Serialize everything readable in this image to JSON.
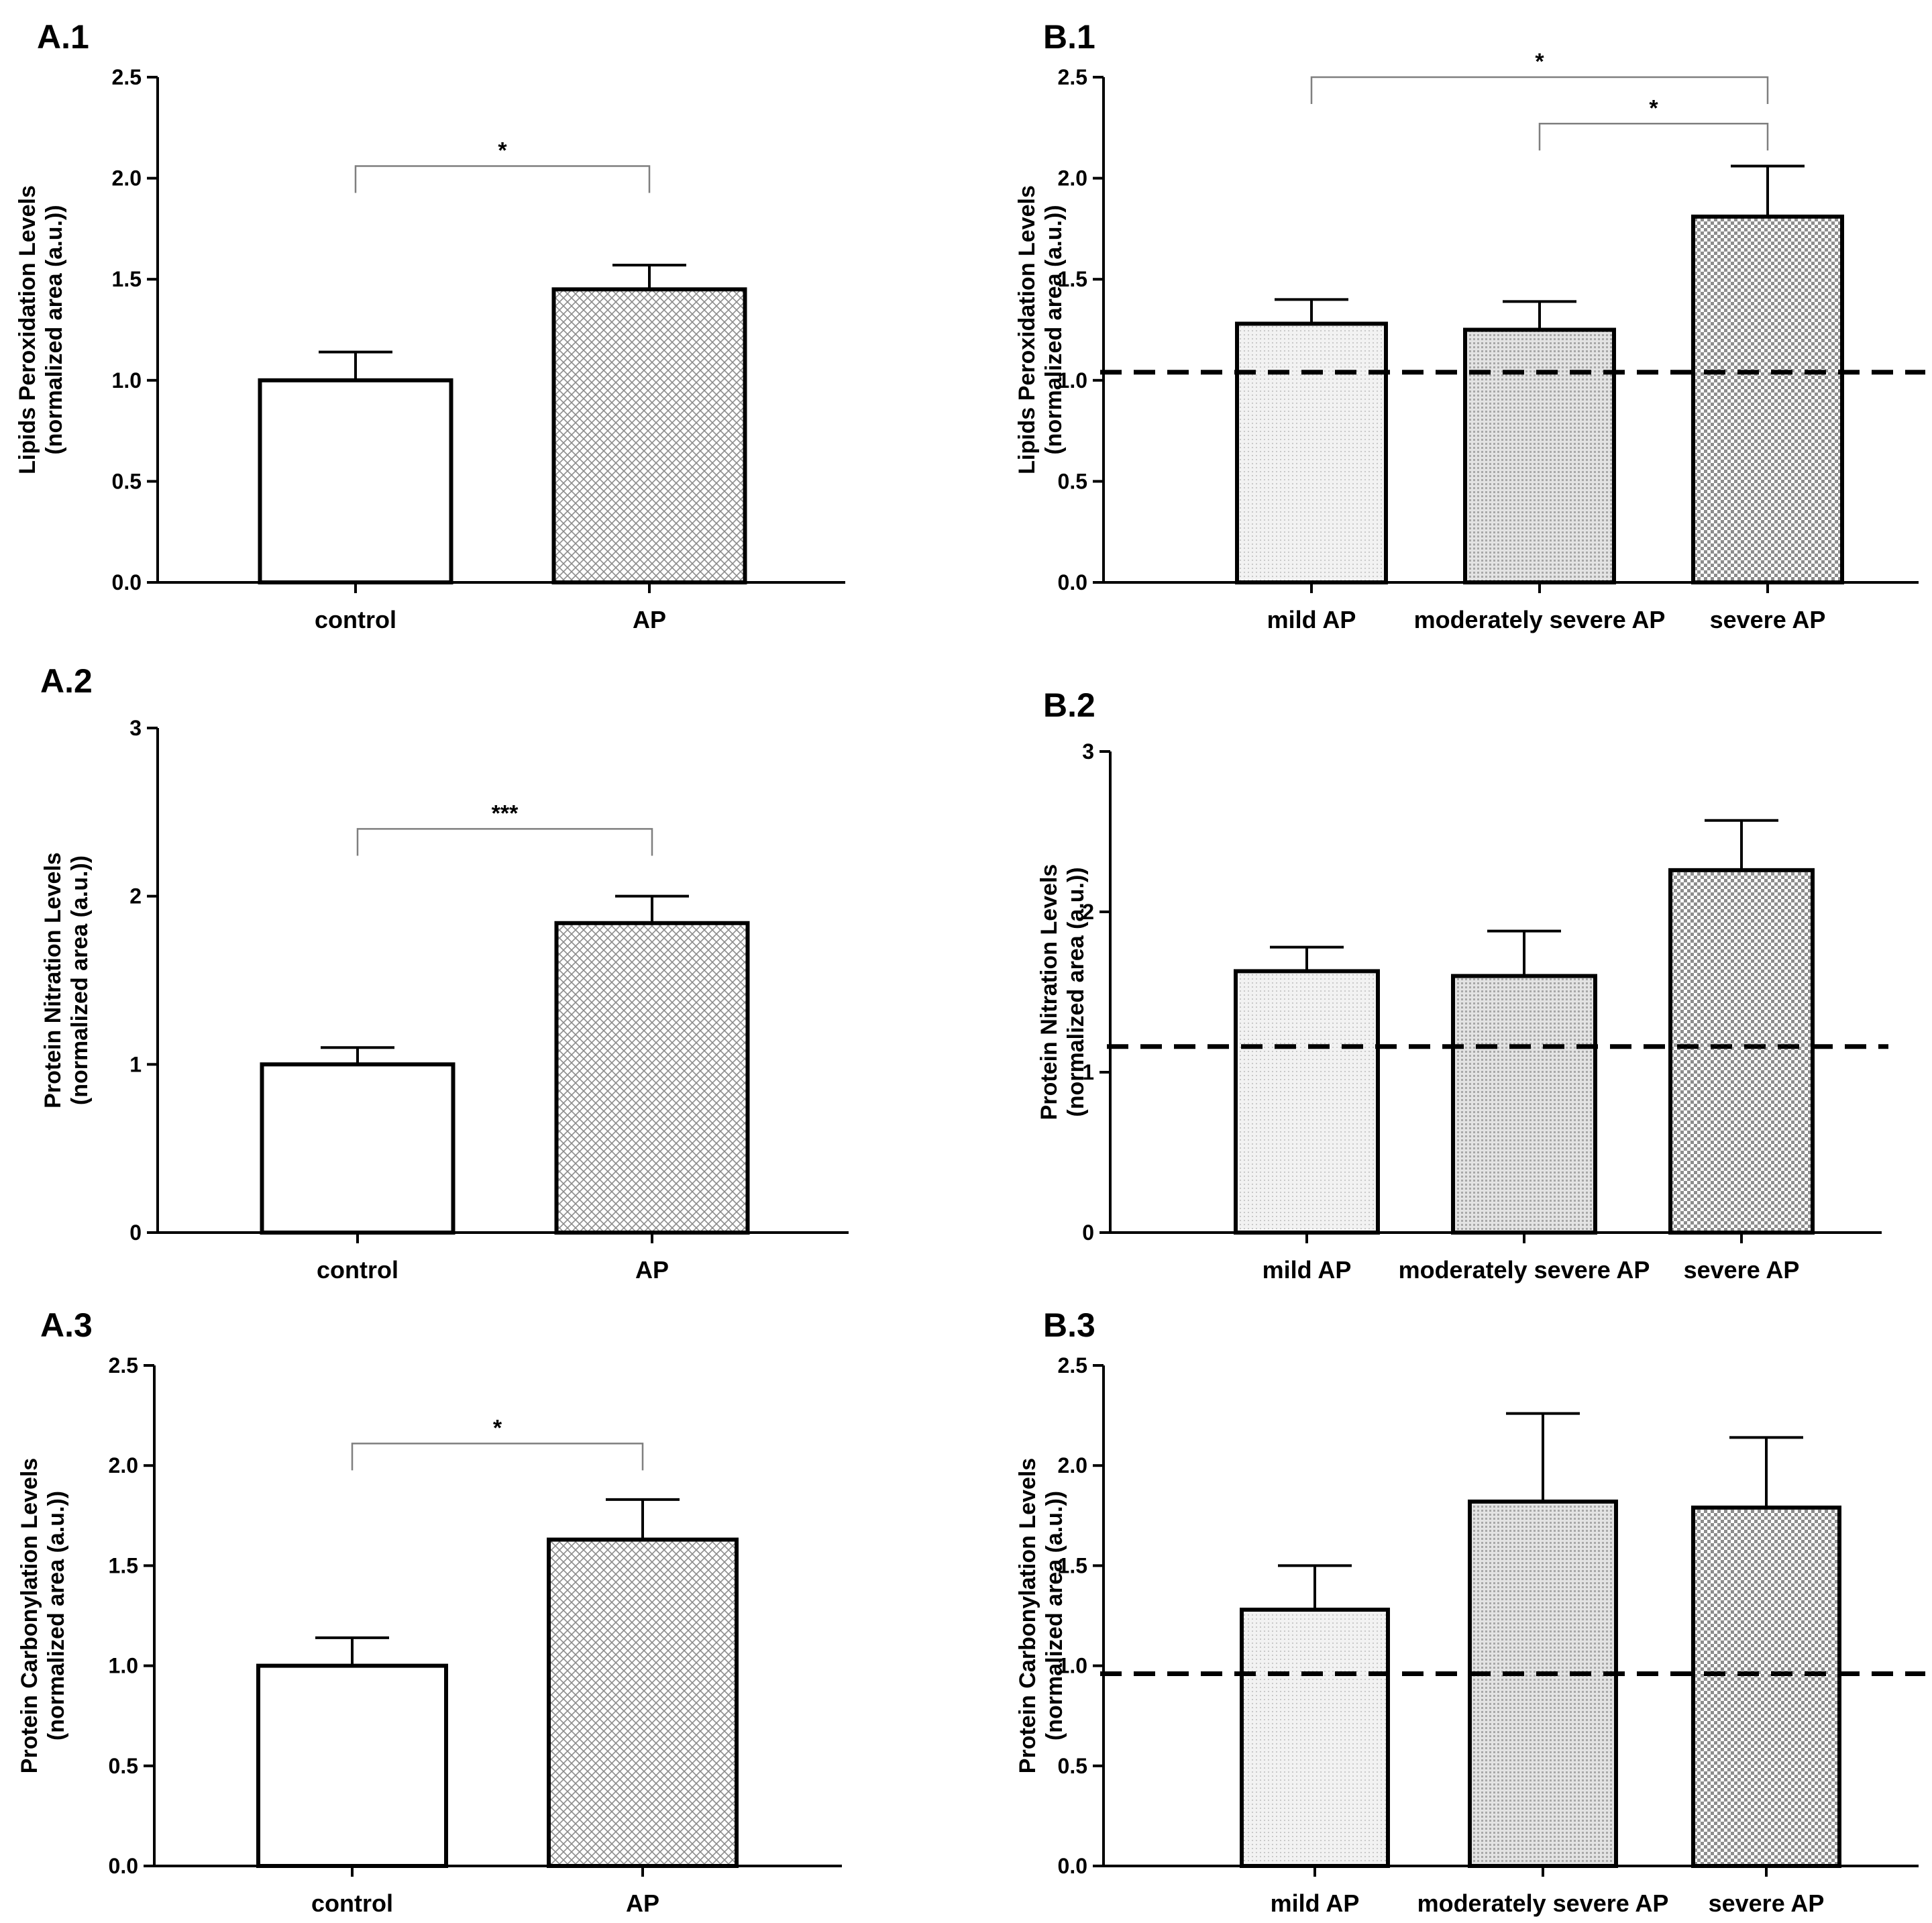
{
  "colors": {
    "ink": "#000000",
    "fill_light": "#f1f1f1",
    "fill_mid": "#d9d9d9",
    "fill_dark": "#bdbdbd",
    "bracket": "#7f7f7f"
  },
  "chart_data": [
    {
      "id": "A1",
      "panel_label": "A.1",
      "type": "bar",
      "title": "",
      "ylabel_line1": "Lipids Peroxidation Levels",
      "ylabel_line2": "(normalized area (a.u.))",
      "ylim": [
        0,
        2.5
      ],
      "ytick_labels": [
        "0.0",
        "0.5",
        "1.0",
        "1.5",
        "2.0",
        "2.5"
      ],
      "categories": [
        "control",
        "AP"
      ],
      "values": [
        1.0,
        1.45
      ],
      "errors": [
        0.14,
        0.12
      ],
      "patterns": [
        "white",
        "mesh"
      ],
      "significance": [
        {
          "from": 0,
          "to": 1,
          "label": "*",
          "level": 2.06
        }
      ]
    },
    {
      "id": "B1",
      "panel_label": "B.1",
      "type": "bar",
      "title": "",
      "ylabel_line1": "Lipids Peroxidation Levels",
      "ylabel_line2": "(normalized area (a.u.))",
      "ylim": [
        0,
        2.5
      ],
      "ytick_labels": [
        "0.0",
        "0.5",
        "1.0",
        "1.5",
        "2.0",
        "2.5"
      ],
      "categories": [
        "mild AP",
        "moderately severe AP",
        "severe AP"
      ],
      "values": [
        1.28,
        1.25,
        1.81
      ],
      "errors": [
        0.12,
        0.14,
        0.25
      ],
      "patterns": [
        "light",
        "mid",
        "dark"
      ],
      "reference_line": 1.04,
      "significance": [
        {
          "from": 0,
          "to": 2,
          "label": "*",
          "level": 2.5
        },
        {
          "from": 1,
          "to": 2,
          "label": "*",
          "level": 2.27
        }
      ]
    },
    {
      "id": "A2",
      "panel_label": "A.2",
      "type": "bar",
      "title": "",
      "ylabel_line1": "Protein Nitration Levels",
      "ylabel_line2": "(normalized area (a.u.))",
      "ylim": [
        0,
        3
      ],
      "ytick_labels": [
        "0",
        "1",
        "2",
        "3"
      ],
      "categories": [
        "control",
        "AP"
      ],
      "values": [
        1.0,
        1.84
      ],
      "errors": [
        0.1,
        0.16
      ],
      "patterns": [
        "white",
        "mesh"
      ],
      "significance": [
        {
          "from": 0,
          "to": 1,
          "label": "***",
          "level": 2.4
        }
      ]
    },
    {
      "id": "B2",
      "panel_label": "B.2",
      "type": "bar",
      "title": "",
      "ylabel_line1": "Protein Nitration Levels",
      "ylabel_line2": "(normalized area (a.u.))",
      "ylim": [
        0,
        3
      ],
      "ytick_labels": [
        "0",
        "1",
        "2",
        "3"
      ],
      "categories": [
        "mild AP",
        "moderately severe AP",
        "severe AP"
      ],
      "values": [
        1.63,
        1.6,
        2.26
      ],
      "errors": [
        0.15,
        0.28,
        0.31
      ],
      "patterns": [
        "light",
        "mid",
        "dark"
      ],
      "reference_line": 1.16,
      "significance": []
    },
    {
      "id": "A3",
      "panel_label": "A.3",
      "type": "bar",
      "title": "",
      "ylabel_line1": "Protein Carbonylation Levels",
      "ylabel_line2": "(normalized area (a.u.))",
      "ylim": [
        0,
        2.5
      ],
      "ytick_labels": [
        "0.0",
        "0.5",
        "1.0",
        "1.5",
        "2.0",
        "2.5"
      ],
      "categories": [
        "control",
        "AP"
      ],
      "values": [
        1.0,
        1.63
      ],
      "errors": [
        0.14,
        0.2
      ],
      "patterns": [
        "white",
        "mesh"
      ],
      "significance": [
        {
          "from": 0,
          "to": 1,
          "label": "*",
          "level": 2.11
        }
      ]
    },
    {
      "id": "B3",
      "panel_label": "B.3",
      "type": "bar",
      "title": "",
      "ylabel_line1": "Protein Carbonylation Levels",
      "ylabel_line2": "(normalized area (a.u.))",
      "ylim": [
        0,
        2.5
      ],
      "ytick_labels": [
        "0.0",
        "0.5",
        "1.0",
        "1.5",
        "2.0",
        "2.5"
      ],
      "categories": [
        "mild AP",
        "moderately severe AP",
        "severe AP"
      ],
      "values": [
        1.28,
        1.82,
        1.79
      ],
      "errors": [
        0.22,
        0.44,
        0.35
      ],
      "patterns": [
        "light",
        "mid",
        "dark"
      ],
      "reference_line": 0.96,
      "significance": []
    }
  ]
}
